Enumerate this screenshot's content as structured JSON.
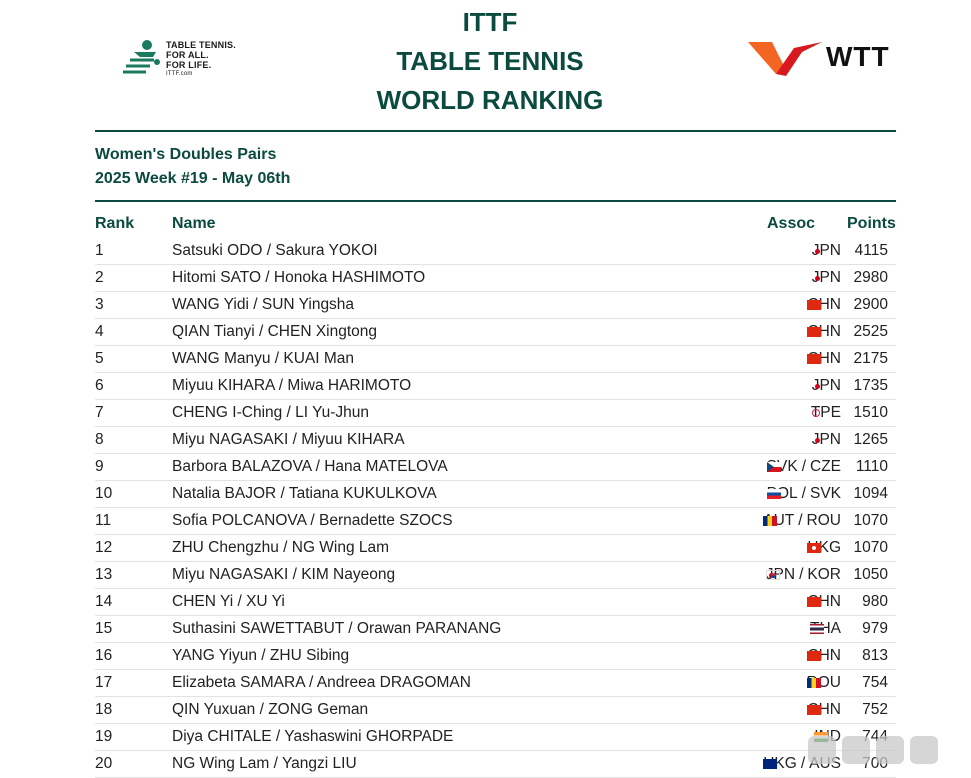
{
  "header": {
    "ittf_logo_lines": [
      "TABLE TENNIS.",
      "FOR ALL.",
      "FOR LIFE."
    ],
    "ittf_logo_url": "ITTF.com",
    "title_lines": [
      "ITTF",
      "TABLE TENNIS",
      "WORLD RANKING"
    ],
    "wtt_logo_text": "WTT"
  },
  "subtitle": {
    "category": "Women's Doubles Pairs",
    "week": "2025 Week #19 - May 06th"
  },
  "colors": {
    "accent": "#0b4a3f",
    "wtt_orange": "#f26522",
    "wtt_red": "#d7191f"
  },
  "table": {
    "columns": {
      "rank": "Rank",
      "name": "Name",
      "assoc": "Assoc",
      "points": "Points"
    },
    "rows": [
      {
        "rank": "1",
        "name": "Satsuki ODO / Sakura YOKOI",
        "a1": "JPN",
        "f1": "jpn",
        "a2": "",
        "f2": "",
        "points": "4115"
      },
      {
        "rank": "2",
        "name": "Hitomi SATO / Honoka HASHIMOTO",
        "a1": "JPN",
        "f1": "jpn",
        "a2": "",
        "f2": "",
        "points": "2980"
      },
      {
        "rank": "3",
        "name": "WANG Yidi / SUN Yingsha",
        "a1": "CHN",
        "f1": "chn",
        "a2": "",
        "f2": "",
        "points": "2900"
      },
      {
        "rank": "4",
        "name": "QIAN Tianyi / CHEN Xingtong",
        "a1": "CHN",
        "f1": "chn",
        "a2": "",
        "f2": "",
        "points": "2525"
      },
      {
        "rank": "5",
        "name": "WANG Manyu / KUAI Man",
        "a1": "CHN",
        "f1": "chn",
        "a2": "",
        "f2": "",
        "points": "2175"
      },
      {
        "rank": "6",
        "name": "Miyuu KIHARA / Miwa HARIMOTO",
        "a1": "JPN",
        "f1": "jpn",
        "a2": "",
        "f2": "",
        "points": "1735"
      },
      {
        "rank": "7",
        "name": "CHENG I-Ching / LI Yu-Jhun",
        "a1": "TPE",
        "f1": "tpe",
        "a2": "",
        "f2": "",
        "points": "1510"
      },
      {
        "rank": "8",
        "name": "Miyu NAGASAKI / Miyuu KIHARA",
        "a1": "JPN",
        "f1": "jpn",
        "a2": "",
        "f2": "",
        "points": "1265"
      },
      {
        "rank": "9",
        "name": "Barbora BALAZOVA / Hana MATELOVA",
        "a1": "SVK",
        "f1": "svk",
        "a2": "CZE",
        "f2": "cze",
        "points": "1110"
      },
      {
        "rank": "10",
        "name": "Natalia BAJOR / Tatiana KUKULKOVA",
        "a1": "POL",
        "f1": "pol",
        "a2": "SVK",
        "f2": "svk",
        "points": "1094"
      },
      {
        "rank": "11",
        "name": "Sofia POLCANOVA / Bernadette SZOCS",
        "a1": "AUT",
        "f1": "aut",
        "a2": "ROU",
        "f2": "rou",
        "points": "1070"
      },
      {
        "rank": "12",
        "name": "ZHU Chengzhu / NG Wing Lam",
        "a1": "HKG",
        "f1": "hkg",
        "a2": "",
        "f2": "",
        "points": "1070"
      },
      {
        "rank": "13",
        "name": "Miyu NAGASAKI / KIM Nayeong",
        "a1": "JPN",
        "f1": "jpn",
        "a2": "KOR",
        "f2": "kor",
        "points": "1050"
      },
      {
        "rank": "14",
        "name": "CHEN Yi / XU Yi",
        "a1": "CHN",
        "f1": "chn",
        "a2": "",
        "f2": "",
        "points": "980"
      },
      {
        "rank": "15",
        "name": "Suthasini SAWETTABUT / Orawan PARANANG",
        "a1": "THA",
        "f1": "tha",
        "a2": "",
        "f2": "",
        "points": "979"
      },
      {
        "rank": "16",
        "name": "YANG Yiyun / ZHU Sibing",
        "a1": "CHN",
        "f1": "chn",
        "a2": "",
        "f2": "",
        "points": "813"
      },
      {
        "rank": "17",
        "name": "Elizabeta SAMARA / Andreea DRAGOMAN",
        "a1": "ROU",
        "f1": "rou",
        "a2": "",
        "f2": "",
        "points": "754"
      },
      {
        "rank": "18",
        "name": "QIN Yuxuan / ZONG Geman",
        "a1": "CHN",
        "f1": "chn",
        "a2": "",
        "f2": "",
        "points": "752"
      },
      {
        "rank": "19",
        "name": "Diya CHITALE / Yashaswini GHORPADE",
        "a1": "IND",
        "f1": "ind",
        "a2": "",
        "f2": "",
        "points": "744"
      },
      {
        "rank": "20",
        "name": "NG Wing Lam / Yangzi LIU",
        "a1": "HKG",
        "f1": "hkg",
        "a2": "AUS",
        "f2": "aus",
        "points": "700"
      }
    ]
  }
}
